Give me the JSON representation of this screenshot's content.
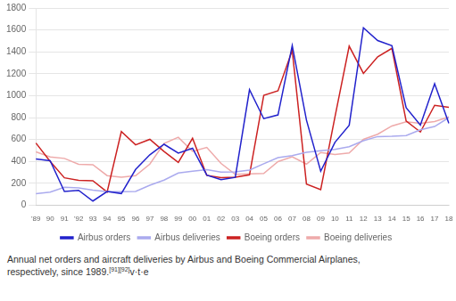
{
  "chart_data": {
    "type": "line",
    "categories": [
      "'89",
      "90",
      "91",
      "'92",
      "93",
      "94",
      "95",
      "96",
      "97",
      "98",
      "99",
      "00",
      "01",
      "02",
      "03",
      "04",
      "05",
      "06",
      "07",
      "08",
      "09",
      "10",
      "11",
      "12",
      "13",
      "14",
      "15",
      "16",
      "17",
      "18"
    ],
    "series": [
      {
        "name": "Airbus orders",
        "color": "#2222cc",
        "values": [
          421,
          406,
          125,
          136,
          38,
          125,
          106,
          326,
          460,
          556,
          476,
          520,
          274,
          233,
          254,
          1054,
          790,
          824,
          1458,
          777,
          310,
          574,
          730,
          1619,
          1503,
          1456,
          890,
          731,
          1109,
          747
        ]
      },
      {
        "name": "Airbus deliveries",
        "color": "#aaaaee",
        "values": [
          105,
          120,
          163,
          157,
          138,
          123,
          124,
          126,
          182,
          229,
          294,
          311,
          325,
          303,
          305,
          320,
          378,
          434,
          453,
          483,
          498,
          510,
          534,
          588,
          626,
          629,
          635,
          688,
          718,
          800
        ]
      },
      {
        "name": "Boeing orders",
        "color": "#cc2222",
        "values": [
          567,
          400,
          250,
          226,
          223,
          120,
          672,
          551,
          601,
          490,
          391,
          611,
          272,
          252,
          255,
          277,
          1002,
          1044,
          1413,
          193,
          142,
          805,
          1452,
          1203,
          1355,
          1432,
          768,
          668,
          912,
          893
        ]
      },
      {
        "name": "Boeing deliveries",
        "color": "#eeaaaa",
        "values": [
          487,
          441,
          427,
          374,
          370,
          270,
          256,
          269,
          375,
          563,
          620,
          491,
          527,
          381,
          281,
          285,
          290,
          398,
          441,
          375,
          481,
          462,
          477,
          601,
          648,
          723,
          762,
          748,
          763,
          806
        ]
      }
    ],
    "ylim": [
      0,
      1800
    ],
    "yticks": [
      0,
      200,
      400,
      600,
      800,
      1000,
      1200,
      1400,
      1600,
      1800
    ],
    "grid": true,
    "legend": "bottom",
    "annotations": [
      "Annual net orders and aircraft deliveries by Airbus and Boeing Commercial Airplanes,",
      "respectively, since 1989.",
      "[91][92]",
      "v·t·e"
    ]
  }
}
